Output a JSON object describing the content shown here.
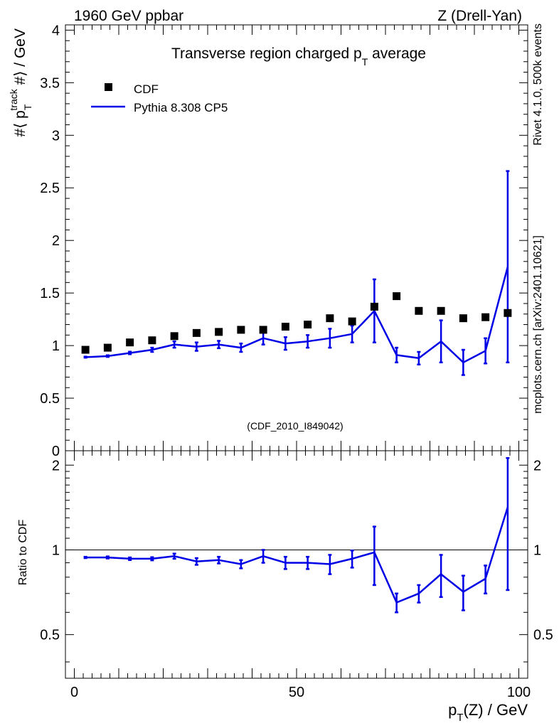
{
  "header": {
    "left_label": "1960 GeV ppbar",
    "right_label": "Z (Drell-Yan)"
  },
  "side_labels": {
    "rivet": "Rivet 4.1.0,  500k events",
    "mcplots": "mcplots.cern.ch [arXiv:2401.10621]"
  },
  "colors": {
    "mc_line": "#0000e6",
    "data_marker": "#000000",
    "watermark": "#8c8c8c"
  },
  "chart_data": [
    {
      "type": "scatter",
      "panel": "main",
      "title": "Transverse region charged p",
      "title_sub": "T",
      "title_rest": " average",
      "ylabel": "#⟨ p",
      "ylabel_sub": "T",
      "ylabel_sup": "track",
      "ylabel_rest": " #⟩ / GeV",
      "xlim": [
        -2,
        102
      ],
      "ylim": [
        0,
        4.05
      ],
      "yticks": [
        0,
        0.5,
        1,
        1.5,
        2,
        2.5,
        3,
        3.5,
        4
      ],
      "ytick_labels": [
        "0",
        "0.5",
        "1",
        "1.5",
        "2",
        "2.5",
        "3",
        "3.5",
        "4"
      ],
      "annotation": "(CDF_2010_I849042)",
      "legend": [
        {
          "name": "CDF",
          "style": "marker"
        },
        {
          "name": "Pythia 8.308 CP5",
          "style": "line"
        }
      ],
      "x": [
        2.5,
        7.5,
        12.5,
        17.5,
        22.5,
        27.5,
        32.5,
        37.5,
        42.5,
        47.5,
        52.5,
        57.5,
        62.5,
        67.5,
        72.5,
        77.5,
        82.5,
        87.5,
        92.5,
        97.5
      ],
      "series": [
        {
          "name": "CDF",
          "values": [
            0.96,
            0.98,
            1.03,
            1.05,
            1.09,
            1.12,
            1.13,
            1.15,
            1.15,
            1.18,
            1.2,
            1.26,
            1.23,
            1.37,
            1.47,
            1.33,
            1.33,
            1.26,
            1.27,
            1.31
          ]
        },
        {
          "name": "Pythia 8.308 CP5",
          "values": [
            0.89,
            0.9,
            0.93,
            0.96,
            1.01,
            0.99,
            1.01,
            0.98,
            1.07,
            1.02,
            1.04,
            1.07,
            1.11,
            1.33,
            0.91,
            0.88,
            1.04,
            0.84,
            0.95,
            1.75
          ],
          "errors": [
            0.005,
            0.008,
            0.012,
            0.02,
            0.03,
            0.04,
            0.035,
            0.04,
            0.06,
            0.06,
            0.06,
            0.09,
            0.08,
            0.3,
            0.07,
            0.06,
            0.2,
            0.12,
            0.12,
            0.91
          ]
        }
      ]
    },
    {
      "type": "line",
      "panel": "ratio",
      "ylabel": "Ratio to CDF",
      "xlabel": "p",
      "xlabel_sub": "T",
      "xlabel_rest": "(Z) / GeV",
      "xlim": [
        -2,
        102
      ],
      "ylim": [
        0.35,
        2.25
      ],
      "yticks": [
        0.5,
        1,
        2
      ],
      "ytick_labels": [
        "0.5",
        "1",
        "2"
      ],
      "xticks": [
        0,
        50,
        100
      ],
      "xtick_labels": [
        "0",
        "50",
        "100"
      ],
      "reference_line": 1,
      "x": [
        2.5,
        7.5,
        12.5,
        17.5,
        22.5,
        27.5,
        32.5,
        37.5,
        42.5,
        47.5,
        52.5,
        57.5,
        62.5,
        67.5,
        72.5,
        77.5,
        82.5,
        87.5,
        92.5,
        97.5
      ],
      "series": [
        {
          "name": "Pythia 8.308 CP5 / CDF",
          "values": [
            0.94,
            0.94,
            0.93,
            0.93,
            0.95,
            0.91,
            0.92,
            0.89,
            0.95,
            0.9,
            0.9,
            0.89,
            0.93,
            0.98,
            0.65,
            0.7,
            0.82,
            0.71,
            0.79,
            1.42
          ],
          "errors": [
            0.005,
            0.008,
            0.01,
            0.012,
            0.02,
            0.025,
            0.025,
            0.03,
            0.05,
            0.045,
            0.045,
            0.07,
            0.065,
            0.23,
            0.05,
            0.05,
            0.14,
            0.1,
            0.09,
            0.7
          ]
        }
      ]
    }
  ]
}
